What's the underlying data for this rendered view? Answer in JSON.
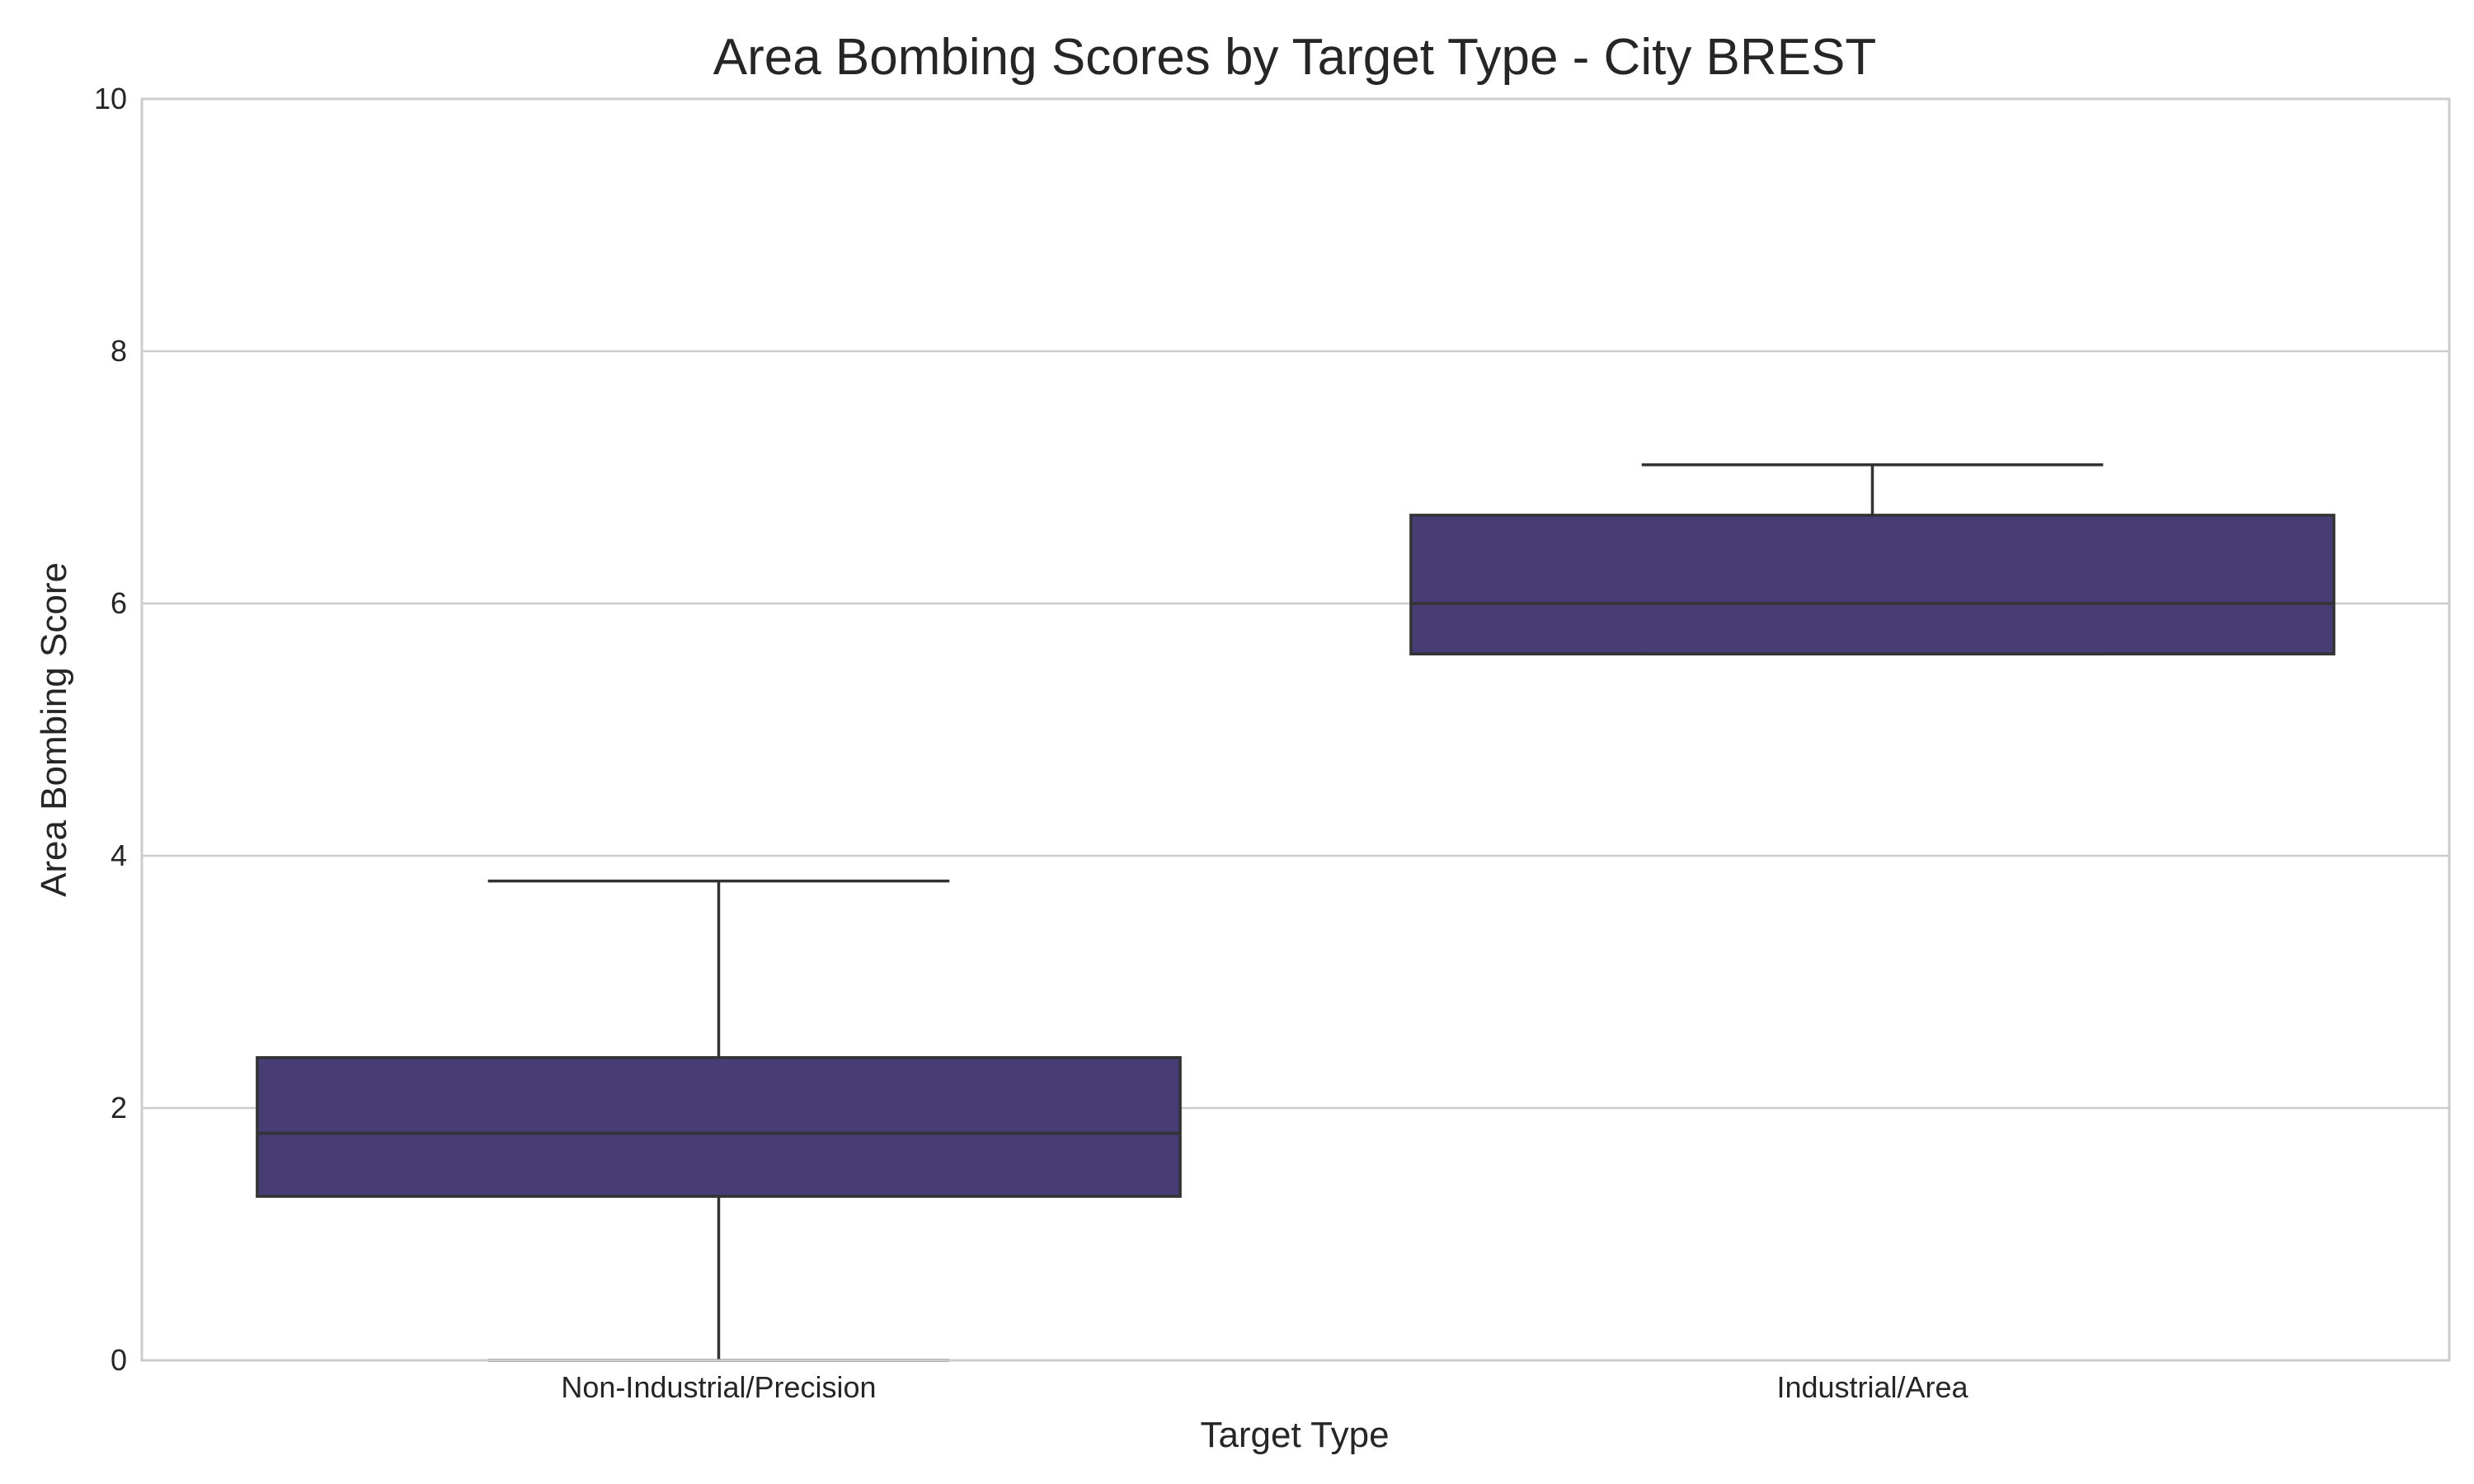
{
  "chart_data": {
    "type": "box",
    "title": "Area Bombing Scores by Target Type - City BREST",
    "xlabel": "Target Type",
    "ylabel": "Area Bombing Score",
    "ylim": [
      0,
      10
    ],
    "yticks": [
      0,
      2,
      4,
      6,
      8,
      10
    ],
    "grid": true,
    "grid_axis": "y",
    "box_color": "#483c74",
    "edge_color": "#333333",
    "categories": [
      "Non-Industrial/Precision",
      "Industrial/Area"
    ],
    "boxes": [
      {
        "category": "Non-Industrial/Precision",
        "whisker_low": 0.0,
        "q1": 1.3,
        "median": 1.8,
        "q3": 2.4,
        "whisker_high": 3.8
      },
      {
        "category": "Industrial/Area",
        "whisker_low": 5.6,
        "q1": 5.6,
        "median": 6.0,
        "q3": 6.7,
        "whisker_high": 7.1
      }
    ]
  }
}
